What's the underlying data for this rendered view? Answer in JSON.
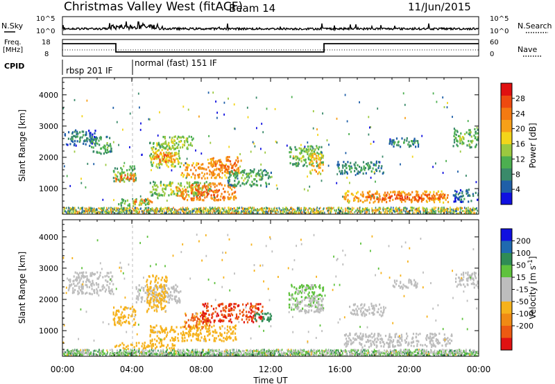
{
  "header": {
    "station": "Christmas Valley West (fitACF)",
    "beam": "Beam 14",
    "date": "11/Jun/2015"
  },
  "strip_panels": {
    "nsky": {
      "left_label": "N.Sky",
      "ticks_left": [
        "10^5",
        "10^0"
      ],
      "ticks_right": [
        "10^5",
        "10^0"
      ],
      "right_label": "N.Search"
    },
    "freq": {
      "left_label_1": "Freq.",
      "left_label_2": "[MHz]",
      "ticks_left": [
        "18",
        "8"
      ],
      "ticks_right": [
        "60",
        "0"
      ],
      "right_label": "Nave"
    },
    "cpid": {
      "label": "CPID",
      "segments": [
        "rbsp 201 IF",
        "normal (fast) 151 IF"
      ]
    }
  },
  "colors": {
    "power": [
      "#1010e0",
      "#1f5fa8",
      "#3a8a6a",
      "#4caf50",
      "#9bc93f",
      "#f3d51a",
      "#f7a018",
      "#f47a12",
      "#ee4a10",
      "#e01010"
    ],
    "velocity": [
      "#1010e0",
      "#1f6ab0",
      "#2f8c55",
      "#5fc23d",
      "#bdbdbd",
      "#bdbdbd",
      "#f6b21c",
      "#f08a14",
      "#ec5a12",
      "#e01212"
    ]
  },
  "chart_data": [
    {
      "type": "heatmap",
      "title": "",
      "xlabel": "Time UT",
      "ylabel": "Slant Range [km]",
      "x_ticks": [
        "00:00",
        "04:00",
        "08:00",
        "12:00",
        "16:00",
        "20:00",
        "00:00"
      ],
      "x_range_hours": [
        0,
        24
      ],
      "y_ticks": [
        "1000",
        "2000",
        "3000",
        "4000"
      ],
      "ylim": [
        180,
        4550
      ],
      "colorbar": {
        "label": "Power [dB]",
        "ticks": [
          "4",
          "8",
          "12",
          "16",
          "20",
          "24",
          "28"
        ],
        "range": [
          0,
          32
        ]
      },
      "patches": [
        {
          "t": [
            0.1,
            1.9
          ],
          "r": [
            2400,
            2900
          ],
          "v": 8
        },
        {
          "t": [
            1.6,
            2.8
          ],
          "r": [
            2100,
            2700
          ],
          "v": 12
        },
        {
          "t": [
            2.9,
            4.2
          ],
          "r": [
            1250,
            1750
          ],
          "v": 14
        },
        {
          "t": [
            2.9,
            4.2
          ],
          "r": [
            1250,
            1500
          ],
          "v": 26
        },
        {
          "t": [
            5.0,
            6.8
          ],
          "r": [
            1700,
            2500
          ],
          "v": 18
        },
        {
          "t": [
            5.2,
            6.5
          ],
          "r": [
            1850,
            2200
          ],
          "v": 26
        },
        {
          "t": [
            5.5,
            7.5
          ],
          "r": [
            2300,
            2700
          ],
          "v": 16
        },
        {
          "t": [
            6.8,
            9.5
          ],
          "r": [
            1350,
            1850
          ],
          "v": 24
        },
        {
          "t": [
            8.5,
            10.3
          ],
          "r": [
            1500,
            2050
          ],
          "v": 26
        },
        {
          "t": [
            5.0,
            8.5
          ],
          "r": [
            800,
            1250
          ],
          "v": 16
        },
        {
          "t": [
            6.5,
            10.0
          ],
          "r": [
            650,
            1200
          ],
          "v": 26
        },
        {
          "t": [
            9.5,
            12.0
          ],
          "r": [
            1100,
            1650
          ],
          "v": 12
        },
        {
          "t": [
            3.2,
            5.0
          ],
          "r": [
            450,
            700
          ],
          "v": 14
        },
        {
          "t": [
            4.0,
            5.2
          ],
          "r": [
            550,
            700
          ],
          "v": 26
        },
        {
          "t": [
            13.0,
            15.0
          ],
          "r": [
            1750,
            2400
          ],
          "v": 14
        },
        {
          "t": [
            14.2,
            15.0
          ],
          "r": [
            1500,
            2150
          ],
          "v": 22
        },
        {
          "t": [
            16.2,
            22.2
          ],
          "r": [
            580,
            950
          ],
          "v": 24
        },
        {
          "t": [
            17.5,
            22.0
          ],
          "r": [
            650,
            850
          ],
          "v": 28
        },
        {
          "t": [
            15.8,
            18.5
          ],
          "r": [
            1500,
            1900
          ],
          "v": 10
        },
        {
          "t": [
            18.8,
            20.5
          ],
          "r": [
            2350,
            2650
          ],
          "v": 10
        },
        {
          "t": [
            22.5,
            24.0
          ],
          "r": [
            2350,
            2950
          ],
          "v": 14
        },
        {
          "t": [
            22.5,
            24.0
          ],
          "r": [
            600,
            1000
          ],
          "v": 8
        }
      ]
    },
    {
      "type": "heatmap",
      "title": "",
      "xlabel": "Time UT",
      "ylabel": "Slant Range [km]",
      "x_ticks": [
        "00:00",
        "04:00",
        "08:00",
        "12:00",
        "16:00",
        "20:00",
        "00:00"
      ],
      "x_range_hours": [
        0,
        24
      ],
      "y_ticks": [
        "1000",
        "2000",
        "3000",
        "4000"
      ],
      "ylim": [
        180,
        4550
      ],
      "colorbar": {
        "label": "Velocity [m s^-1]",
        "ticks": [
          "200",
          "100",
          "50",
          "15",
          "-15",
          "-50",
          "-100",
          "-200"
        ]
      },
      "patches": [
        {
          "t": [
            0.3,
            2.9
          ],
          "r": [
            2200,
            2900
          ],
          "v": 0
        },
        {
          "t": [
            2.9,
            4.2
          ],
          "r": [
            1200,
            1800
          ],
          "v": -40
        },
        {
          "t": [
            4.2,
            6.8
          ],
          "r": [
            1900,
            2500
          ],
          "v": 0
        },
        {
          "t": [
            4.8,
            6.0
          ],
          "r": [
            1600,
            2800
          ],
          "v": -40
        },
        {
          "t": [
            3.0,
            6.5
          ],
          "r": [
            450,
            650
          ],
          "v": -45
        },
        {
          "t": [
            5.0,
            10.0
          ],
          "r": [
            700,
            1200
          ],
          "v": -60
        },
        {
          "t": [
            7.0,
            8.5
          ],
          "r": [
            1100,
            1600
          ],
          "v": -80
        },
        {
          "t": [
            8.0,
            11.5
          ],
          "r": [
            1300,
            1900
          ],
          "v": -150
        },
        {
          "t": [
            11.0,
            12.0
          ],
          "r": [
            1300,
            1600
          ],
          "v": 60
        },
        {
          "t": [
            13.0,
            15.0
          ],
          "r": [
            1700,
            2500
          ],
          "v": 20
        },
        {
          "t": [
            13.5,
            15.0
          ],
          "r": [
            1600,
            2100
          ],
          "v": 0
        },
        {
          "t": [
            16.2,
            22.5
          ],
          "r": [
            500,
            950
          ],
          "v": 0
        },
        {
          "t": [
            16.5,
            18.5
          ],
          "r": [
            1500,
            1900
          ],
          "v": 0
        },
        {
          "t": [
            19.0,
            20.5
          ],
          "r": [
            2350,
            2650
          ],
          "v": 0
        },
        {
          "t": [
            22.6,
            24.0
          ],
          "r": [
            2400,
            2900
          ],
          "v": 0
        },
        {
          "t": [
            0.0,
            24.0
          ],
          "r": [
            200,
            330
          ],
          "v": 25
        }
      ]
    }
  ]
}
